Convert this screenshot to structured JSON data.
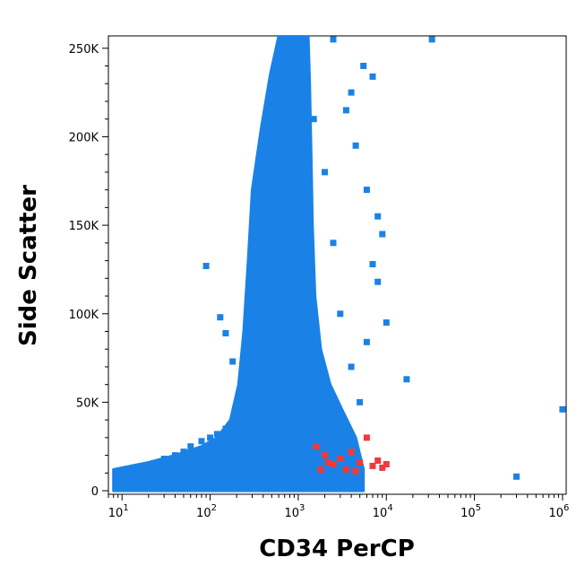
{
  "chart_data": {
    "type": "scatter",
    "title": "",
    "xlabel": "CD34 PerCP",
    "ylabel": "Side Scatter",
    "x_scale": "log",
    "xlim": [
      7,
      1100000
    ],
    "ylim": [
      -2000,
      257000
    ],
    "x_ticks": [
      {
        "value": 10,
        "base": "10",
        "exp": "1"
      },
      {
        "value": 100,
        "base": "10",
        "exp": "2"
      },
      {
        "value": 1000,
        "base": "10",
        "exp": "3"
      },
      {
        "value": 10000,
        "base": "10",
        "exp": "4"
      },
      {
        "value": 100000,
        "base": "10",
        "exp": "5"
      },
      {
        "value": 1000000,
        "base": "10",
        "exp": "6"
      }
    ],
    "y_ticks": [
      {
        "value": 0,
        "label": "0"
      },
      {
        "value": 50000,
        "label": "50K"
      },
      {
        "value": 100000,
        "label": "100K"
      },
      {
        "value": 150000,
        "label": "150K"
      },
      {
        "value": 200000,
        "label": "200K"
      },
      {
        "value": 250000,
        "label": "250K"
      }
    ],
    "grid": false,
    "colors": {
      "main": "#1a82e6",
      "gated": "#f23838"
    },
    "series": [
      {
        "color": "#1a82e6",
        "points": [
          [
            12,
            8000
          ],
          [
            15,
            12000
          ],
          [
            20,
            9000
          ],
          [
            25,
            15000
          ],
          [
            30,
            18000
          ],
          [
            40,
            20000
          ],
          [
            50,
            22000
          ],
          [
            60,
            25000
          ],
          [
            80,
            28000
          ],
          [
            100,
            30000
          ],
          [
            120,
            32000
          ],
          [
            150,
            35000
          ],
          [
            200,
            45000
          ],
          [
            250,
            60000
          ],
          [
            300,
            80000
          ],
          [
            350,
            100000
          ],
          [
            400,
            130000
          ],
          [
            450,
            160000
          ],
          [
            500,
            190000
          ],
          [
            600,
            210000
          ],
          [
            700,
            235000
          ],
          [
            800,
            250000
          ],
          [
            1000,
            245000
          ],
          [
            1200,
            230000
          ],
          [
            1500,
            210000
          ],
          [
            2000,
            180000
          ],
          [
            2500,
            140000
          ],
          [
            3000,
            100000
          ],
          [
            4000,
            70000
          ],
          [
            5000,
            50000
          ],
          [
            90,
            127000
          ],
          [
            130,
            98000
          ],
          [
            150,
            89000
          ],
          [
            180,
            73000
          ],
          [
            3500,
            215000
          ],
          [
            4500,
            195000
          ],
          [
            6000,
            170000
          ],
          [
            8000,
            155000
          ],
          [
            9000,
            145000
          ],
          [
            7000,
            128000
          ],
          [
            8000,
            118000
          ],
          [
            10000,
            95000
          ],
          [
            6000,
            84000
          ],
          [
            17000,
            63000
          ],
          [
            33000,
            255000
          ],
          [
            300000,
            8000
          ],
          [
            1000000,
            46000
          ],
          [
            2500,
            255000
          ],
          [
            4000,
            225000
          ],
          [
            5500,
            240000
          ],
          [
            7000,
            234000
          ]
        ]
      },
      {
        "color": "#f23838",
        "points": [
          [
            1600,
            25000
          ],
          [
            2000,
            20000
          ],
          [
            2500,
            15000
          ],
          [
            3000,
            18000
          ],
          [
            3500,
            12000
          ],
          [
            4000,
            22000
          ],
          [
            5000,
            16000
          ],
          [
            6000,
            30000
          ],
          [
            7000,
            14000
          ],
          [
            8000,
            17000
          ],
          [
            9000,
            13000
          ],
          [
            10000,
            15000
          ],
          [
            1800,
            12000
          ],
          [
            2200,
            16000
          ],
          [
            4500,
            11000
          ]
        ]
      }
    ]
  }
}
